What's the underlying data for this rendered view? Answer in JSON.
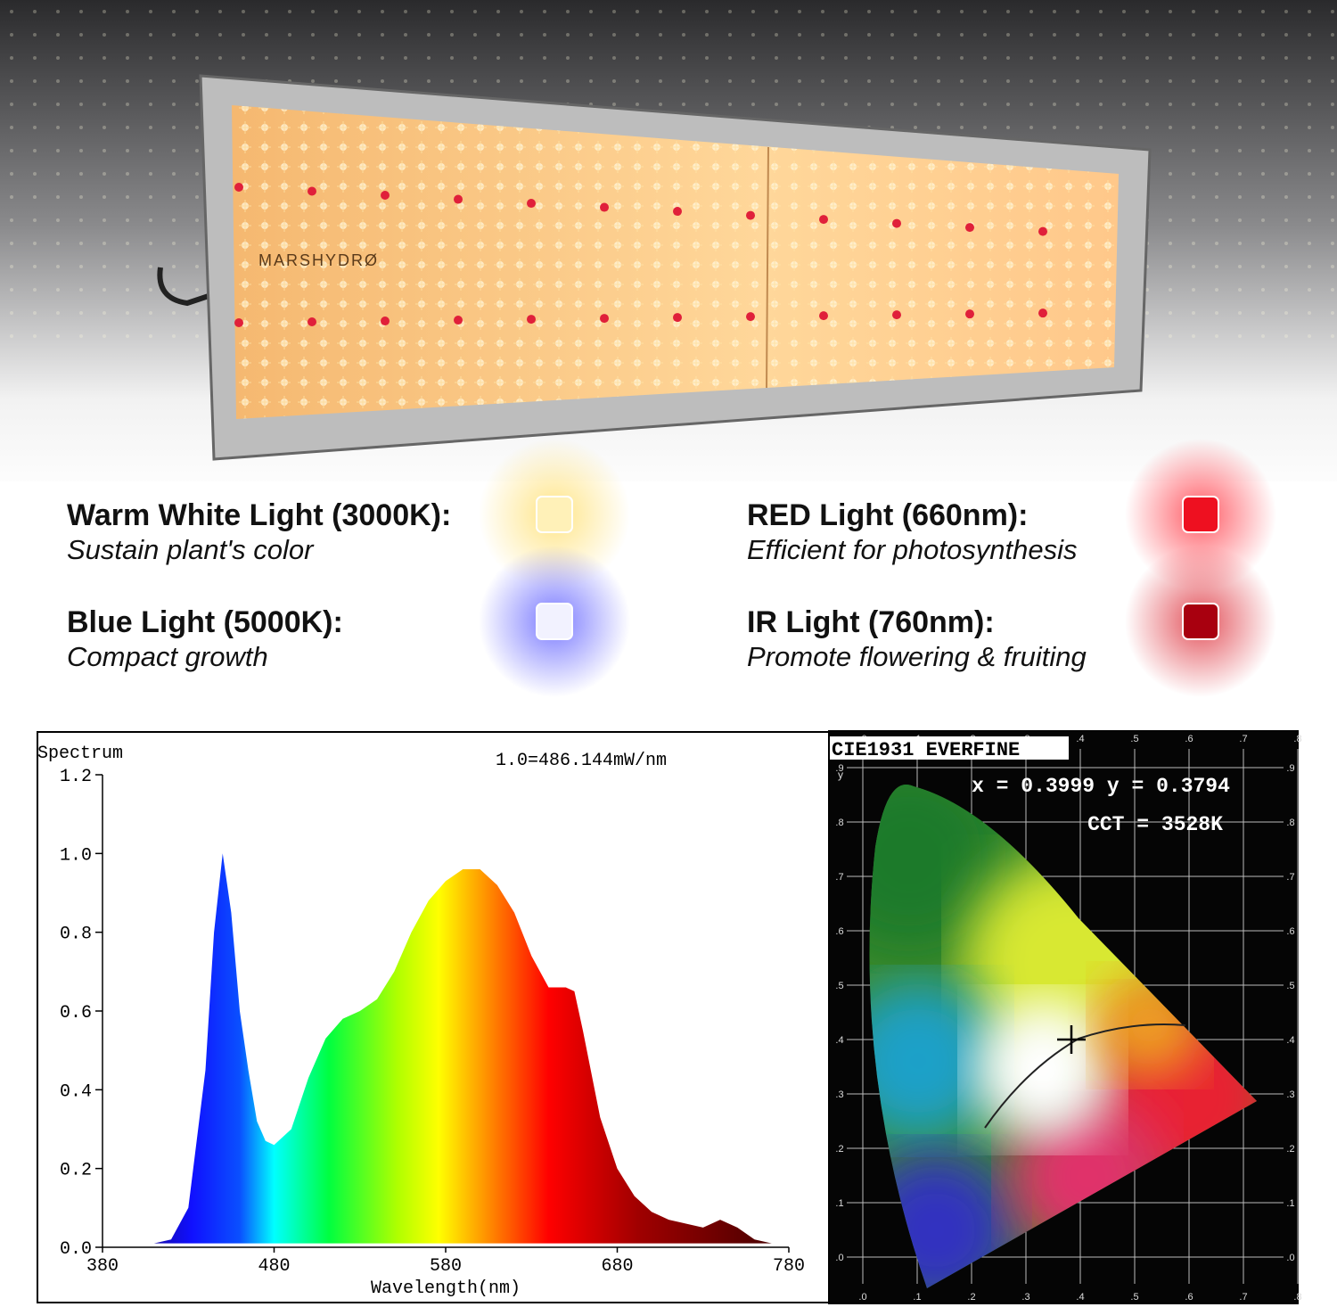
{
  "brand": "MARSHYDRØ",
  "lights": [
    {
      "title": "Warm White Light (3000K):",
      "description": "Sustain plant's color",
      "color": "#fff1b8",
      "glow": "#ffe27a"
    },
    {
      "title": "RED Light (660nm):",
      "description": "Efficient for photosynthesis",
      "color": "#ee1020",
      "glow": "#ff4a55"
    },
    {
      "title": "Blue Light (5000K):",
      "description": "Compact growth",
      "color": "#f2f2ff",
      "glow": "#6b6bff"
    },
    {
      "title": "IR Light (760nm):",
      "description": "Promote flowering & fruiting",
      "color": "#a8000f",
      "glow": "#e0404a"
    }
  ],
  "chart_data": {
    "type": "area",
    "y_label": "Spectrum",
    "x_label": "Wavelength(nm)",
    "annotation": "1.0=486.144mW/nm",
    "x": [
      380,
      390,
      400,
      410,
      420,
      430,
      440,
      445,
      450,
      455,
      460,
      465,
      470,
      475,
      480,
      490,
      500,
      510,
      520,
      530,
      540,
      550,
      560,
      570,
      580,
      590,
      600,
      610,
      620,
      630,
      640,
      650,
      655,
      660,
      670,
      680,
      690,
      700,
      710,
      720,
      730,
      740,
      750,
      760,
      770,
      780
    ],
    "values": [
      0.01,
      0.01,
      0.01,
      0.01,
      0.02,
      0.1,
      0.45,
      0.8,
      1.0,
      0.85,
      0.6,
      0.45,
      0.32,
      0.27,
      0.26,
      0.3,
      0.43,
      0.53,
      0.58,
      0.6,
      0.63,
      0.7,
      0.8,
      0.88,
      0.93,
      0.96,
      0.96,
      0.92,
      0.85,
      0.74,
      0.66,
      0.66,
      0.65,
      0.55,
      0.33,
      0.2,
      0.13,
      0.09,
      0.07,
      0.06,
      0.05,
      0.07,
      0.05,
      0.02,
      0.01,
      0.01
    ],
    "xlim": [
      380,
      780
    ],
    "xticks": [
      380,
      480,
      580,
      680,
      780
    ],
    "ylim": [
      0,
      1.2
    ],
    "yticks": [
      {
        "value": 0,
        "label": "0.0"
      },
      0.2,
      0.4,
      0.6,
      0.8,
      {
        "value": 1,
        "label": "1.0"
      },
      1.2
    ]
  },
  "cie": {
    "title": "CIE1931 EVERFINE",
    "coordinates": "x = 0.3999 y = 0.3794",
    "cct": "CCT = 3528K",
    "xticks": [
      ".0",
      ".1",
      ".2",
      ".3",
      ".4",
      ".5",
      ".6",
      ".7",
      ".8"
    ],
    "yticks": [
      ".0",
      ".1",
      ".2",
      ".3",
      ".4",
      ".5",
      ".6",
      ".7",
      ".8",
      ".9"
    ],
    "y_label": "y"
  }
}
